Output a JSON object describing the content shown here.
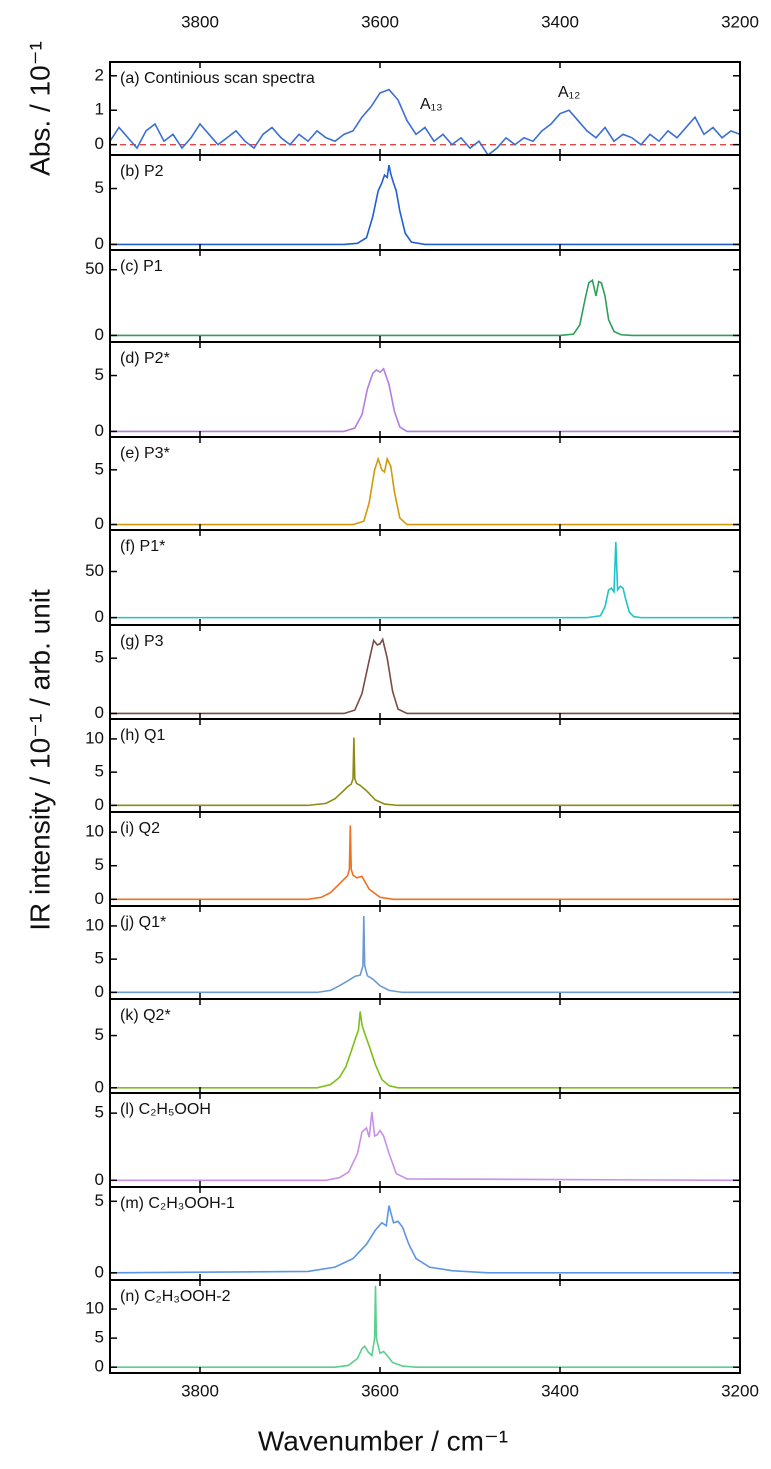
{
  "xlabel": "Wavenumber / cm⁻¹",
  "ylabel": "IR intensity / 10⁻¹ / arb. unit",
  "chart_data": [
    {
      "type": "line",
      "title": "(a) Continious scan spectra",
      "ylabel": "Abs. / 10⁻¹",
      "annotations": [
        "A₁₃",
        "A₁₂"
      ],
      "color": "#3a6fd6",
      "hline": 0,
      "hline_color": "#e04848",
      "x": [
        3900,
        3890,
        3880,
        3870,
        3860,
        3850,
        3840,
        3830,
        3820,
        3810,
        3800,
        3790,
        3780,
        3770,
        3760,
        3750,
        3740,
        3730,
        3720,
        3710,
        3700,
        3690,
        3680,
        3670,
        3660,
        3650,
        3640,
        3630,
        3620,
        3610,
        3600,
        3590,
        3580,
        3570,
        3560,
        3550,
        3540,
        3530,
        3520,
        3510,
        3500,
        3490,
        3480,
        3470,
        3460,
        3450,
        3440,
        3430,
        3420,
        3410,
        3400,
        3390,
        3380,
        3370,
        3360,
        3350,
        3340,
        3330,
        3320,
        3310,
        3300,
        3290,
        3280,
        3270,
        3260,
        3250,
        3240,
        3230,
        3220,
        3210,
        3200
      ],
      "values": [
        0.1,
        0.5,
        0.2,
        -0.1,
        0.4,
        0.6,
        0.1,
        0.3,
        -0.1,
        0.2,
        0.6,
        0.3,
        0,
        0.2,
        0.4,
        0.1,
        -0.1,
        0.3,
        0.5,
        0.2,
        0,
        0.3,
        0.1,
        0.4,
        0.2,
        0.1,
        0.3,
        0.4,
        0.8,
        1.1,
        1.5,
        1.6,
        1.3,
        0.7,
        0.3,
        0.5,
        0.1,
        0.3,
        0,
        0.2,
        -0.1,
        0.1,
        -0.3,
        -0.1,
        0.2,
        0,
        0.2,
        0.1,
        0.4,
        0.6,
        0.9,
        1.0,
        0.7,
        0.4,
        0.2,
        0.5,
        0.1,
        0.3,
        0.2,
        0,
        0.3,
        0.1,
        0.4,
        0.2,
        0.5,
        0.8,
        0.3,
        0.5,
        0.2,
        0.4,
        0.3
      ],
      "xlim": [
        3900,
        3200
      ],
      "xticks": [
        3800,
        3600,
        3400,
        3200
      ],
      "ylim": [
        -0.3,
        2.4
      ],
      "yticks": [
        0,
        1,
        2
      ]
    },
    {
      "type": "line",
      "title": "(b) P2",
      "color": "#1f5fd0",
      "x": [
        3900,
        3640,
        3625,
        3615,
        3608,
        3602,
        3598,
        3595,
        3592,
        3590,
        3588,
        3585,
        3582,
        3578,
        3572,
        3565,
        3550,
        3200
      ],
      "values": [
        0,
        0,
        0.1,
        0.6,
        2.5,
        4.8,
        5.5,
        6.2,
        6.0,
        7.1,
        6.3,
        5.5,
        4.8,
        3.0,
        1.0,
        0.2,
        0,
        0
      ],
      "xlim": [
        3900,
        3200
      ],
      "xticks": [
        3800,
        3600,
        3400,
        3200
      ],
      "ylim": [
        -0.5,
        8
      ],
      "yticks": [
        0,
        5
      ]
    },
    {
      "type": "line",
      "title": "(c) P1",
      "color": "#2e9e5b",
      "x": [
        3900,
        3400,
        3385,
        3378,
        3372,
        3368,
        3364,
        3360,
        3357,
        3354,
        3350,
        3346,
        3340,
        3332,
        3320,
        3200
      ],
      "values": [
        0,
        0,
        1,
        8,
        28,
        40,
        42,
        30,
        41,
        40,
        30,
        12,
        3,
        0.5,
        0,
        0
      ],
      "xlim": [
        3900,
        3200
      ],
      "xticks": [
        3800,
        3600,
        3400,
        3200
      ],
      "ylim": [
        -5,
        65
      ],
      "yticks": [
        0,
        50
      ]
    },
    {
      "type": "line",
      "title": "(d) P2*",
      "color": "#b27ee0",
      "x": [
        3900,
        3640,
        3628,
        3620,
        3614,
        3608,
        3604,
        3600,
        3596,
        3590,
        3584,
        3578,
        3570,
        3200
      ],
      "values": [
        0,
        0,
        0.3,
        1.5,
        3.8,
        5.2,
        5.5,
        5.3,
        5.6,
        4.2,
        1.8,
        0.4,
        0,
        0
      ],
      "xlim": [
        3900,
        3200
      ],
      "xticks": [
        3800,
        3600,
        3400,
        3200
      ],
      "ylim": [
        -0.5,
        8
      ],
      "yticks": [
        0,
        5
      ]
    },
    {
      "type": "line",
      "title": "(e) P3*",
      "color": "#d19a0c",
      "x": [
        3900,
        3630,
        3618,
        3612,
        3606,
        3602,
        3598,
        3595,
        3592,
        3588,
        3584,
        3578,
        3570,
        3200
      ],
      "values": [
        0,
        0,
        0.3,
        2,
        5,
        6,
        5,
        4.8,
        6,
        5.3,
        3,
        0.6,
        0,
        0
      ],
      "xlim": [
        3900,
        3200
      ],
      "xticks": [
        3800,
        3600,
        3400,
        3200
      ],
      "ylim": [
        -0.5,
        8
      ],
      "yticks": [
        0,
        5
      ]
    },
    {
      "type": "line",
      "title": "(f) P1*",
      "color": "#1fc3c9",
      "x": [
        3900,
        3370,
        3355,
        3350,
        3346,
        3343,
        3340,
        3338,
        3336,
        3333,
        3330,
        3327,
        3323,
        3318,
        3310,
        3200
      ],
      "values": [
        0,
        0,
        2,
        12,
        30,
        32,
        28,
        82,
        30,
        34,
        32,
        20,
        6,
        1,
        0,
        0
      ],
      "xlim": [
        3900,
        3200
      ],
      "xticks": [
        3800,
        3600,
        3400,
        3200
      ],
      "ylim": [
        -8,
        95
      ],
      "yticks": [
        0,
        50
      ]
    },
    {
      "type": "line",
      "title": "(g) P3",
      "color": "#7a4a44",
      "x": [
        3900,
        3640,
        3628,
        3620,
        3612,
        3607,
        3603,
        3600,
        3597,
        3592,
        3586,
        3580,
        3570,
        3200
      ],
      "values": [
        0,
        0,
        0.3,
        1.8,
        4.8,
        6.6,
        6.2,
        6.3,
        6.7,
        5,
        2,
        0.4,
        0,
        0
      ],
      "xlim": [
        3900,
        3200
      ],
      "xticks": [
        3800,
        3600,
        3400,
        3200
      ],
      "ylim": [
        -0.5,
        8
      ],
      "yticks": [
        0,
        5
      ]
    },
    {
      "type": "line",
      "title": "(h) Q1",
      "color": "#8c8c14",
      "x": [
        3900,
        3680,
        3660,
        3650,
        3642,
        3636,
        3632,
        3630,
        3629,
        3628,
        3626,
        3622,
        3615,
        3605,
        3595,
        3580,
        3200
      ],
      "values": [
        0,
        0,
        0.3,
        1,
        2,
        2.8,
        3.2,
        4,
        10.2,
        4,
        3.3,
        3,
        2.2,
        0.8,
        0.2,
        0,
        0
      ],
      "xlim": [
        3900,
        3200
      ],
      "xticks": [
        3800,
        3600,
        3400,
        3200
      ],
      "ylim": [
        -1,
        13
      ],
      "yticks": [
        0,
        5,
        10
      ]
    },
    {
      "type": "line",
      "title": "(i) Q2",
      "color": "#f07020",
      "x": [
        3900,
        3680,
        3665,
        3655,
        3645,
        3640,
        3636,
        3634,
        3633,
        3632,
        3630,
        3626,
        3620,
        3612,
        3600,
        3585,
        3200
      ],
      "values": [
        0,
        0,
        0.3,
        1,
        2.3,
        3,
        3.5,
        4.5,
        11,
        4.5,
        3.6,
        3.2,
        3.4,
        1.5,
        0.3,
        0,
        0
      ],
      "xlim": [
        3900,
        3200
      ],
      "xticks": [
        3800,
        3600,
        3400,
        3200
      ],
      "ylim": [
        -1,
        13
      ],
      "yticks": [
        0,
        5,
        10
      ]
    },
    {
      "type": "line",
      "title": "(j) Q1*",
      "color": "#6b9bd1",
      "x": [
        3900,
        3670,
        3655,
        3645,
        3635,
        3628,
        3622,
        3619,
        3618,
        3617,
        3614,
        3608,
        3600,
        3590,
        3575,
        3200
      ],
      "values": [
        0,
        0,
        0.3,
        1,
        1.8,
        2.4,
        2.6,
        4,
        11.5,
        4,
        2.5,
        2,
        1,
        0.3,
        0,
        0
      ],
      "xlim": [
        3900,
        3200
      ],
      "xticks": [
        3800,
        3600,
        3400,
        3200
      ],
      "ylim": [
        -1,
        13
      ],
      "yticks": [
        0,
        5,
        10
      ]
    },
    {
      "type": "line",
      "title": "(k) Q2*",
      "color": "#7cbf1a",
      "x": [
        3900,
        3670,
        3655,
        3645,
        3638,
        3632,
        3627,
        3624,
        3622,
        3620,
        3617,
        3612,
        3605,
        3598,
        3590,
        3580,
        3200
      ],
      "values": [
        0,
        0,
        0.3,
        1,
        2,
        3.5,
        4.8,
        5.5,
        7.3,
        6,
        5.2,
        4,
        2.2,
        0.8,
        0.2,
        0,
        0
      ],
      "xlim": [
        3900,
        3200
      ],
      "xticks": [
        3800,
        3600,
        3400,
        3200
      ],
      "ylim": [
        -0.5,
        8.5
      ],
      "yticks": [
        0,
        5
      ]
    },
    {
      "type": "line",
      "title": "(l) C₂H₅OOH",
      "color": "#c890e8",
      "x": [
        3900,
        3660,
        3645,
        3635,
        3625,
        3620,
        3615,
        3612,
        3609,
        3606,
        3603,
        3600,
        3596,
        3590,
        3582,
        3570,
        3200
      ],
      "values": [
        0,
        0,
        0.2,
        0.6,
        2,
        3.6,
        3.9,
        3.2,
        5.1,
        3.3,
        3.4,
        3.7,
        3.3,
        2,
        0.5,
        0.1,
        0
      ],
      "xlim": [
        3900,
        3200
      ],
      "xticks": [
        3800,
        3600,
        3400,
        3200
      ],
      "ylim": [
        -0.5,
        6.5
      ],
      "yticks": [
        0,
        5
      ]
    },
    {
      "type": "line",
      "title": "(m) C₂H₃OOH-1",
      "color": "#5a96e6",
      "x": [
        3900,
        3680,
        3650,
        3630,
        3615,
        3605,
        3598,
        3593,
        3590,
        3585,
        3580,
        3575,
        3568,
        3560,
        3545,
        3520,
        3480,
        3200
      ],
      "values": [
        0,
        0.1,
        0.4,
        1,
        2,
        3,
        3.5,
        3.3,
        4.7,
        3.5,
        3.6,
        3.2,
        2,
        1,
        0.4,
        0.15,
        0,
        0
      ],
      "xlim": [
        3900,
        3200
      ],
      "xticks": [
        3800,
        3600,
        3400,
        3200
      ],
      "ylim": [
        -0.5,
        6
      ],
      "yticks": [
        0,
        5
      ]
    },
    {
      "type": "line",
      "title": "(n) C₂H₃OOH-2",
      "color": "#5ccf8f",
      "x": [
        3900,
        3650,
        3635,
        3625,
        3620,
        3617,
        3613,
        3609,
        3606,
        3605,
        3604,
        3600,
        3596,
        3592,
        3586,
        3575,
        3560,
        3200
      ],
      "values": [
        0,
        0,
        0.3,
        1.5,
        3.2,
        3.6,
        2.6,
        2,
        5,
        14,
        5,
        2.4,
        2.7,
        2,
        0.8,
        0.2,
        0,
        0
      ],
      "xlim": [
        3900,
        3200
      ],
      "xticks": [
        3800,
        3600,
        3400,
        3200
      ],
      "ylim": [
        -1,
        15
      ],
      "yticks": [
        0,
        5,
        10
      ]
    }
  ]
}
